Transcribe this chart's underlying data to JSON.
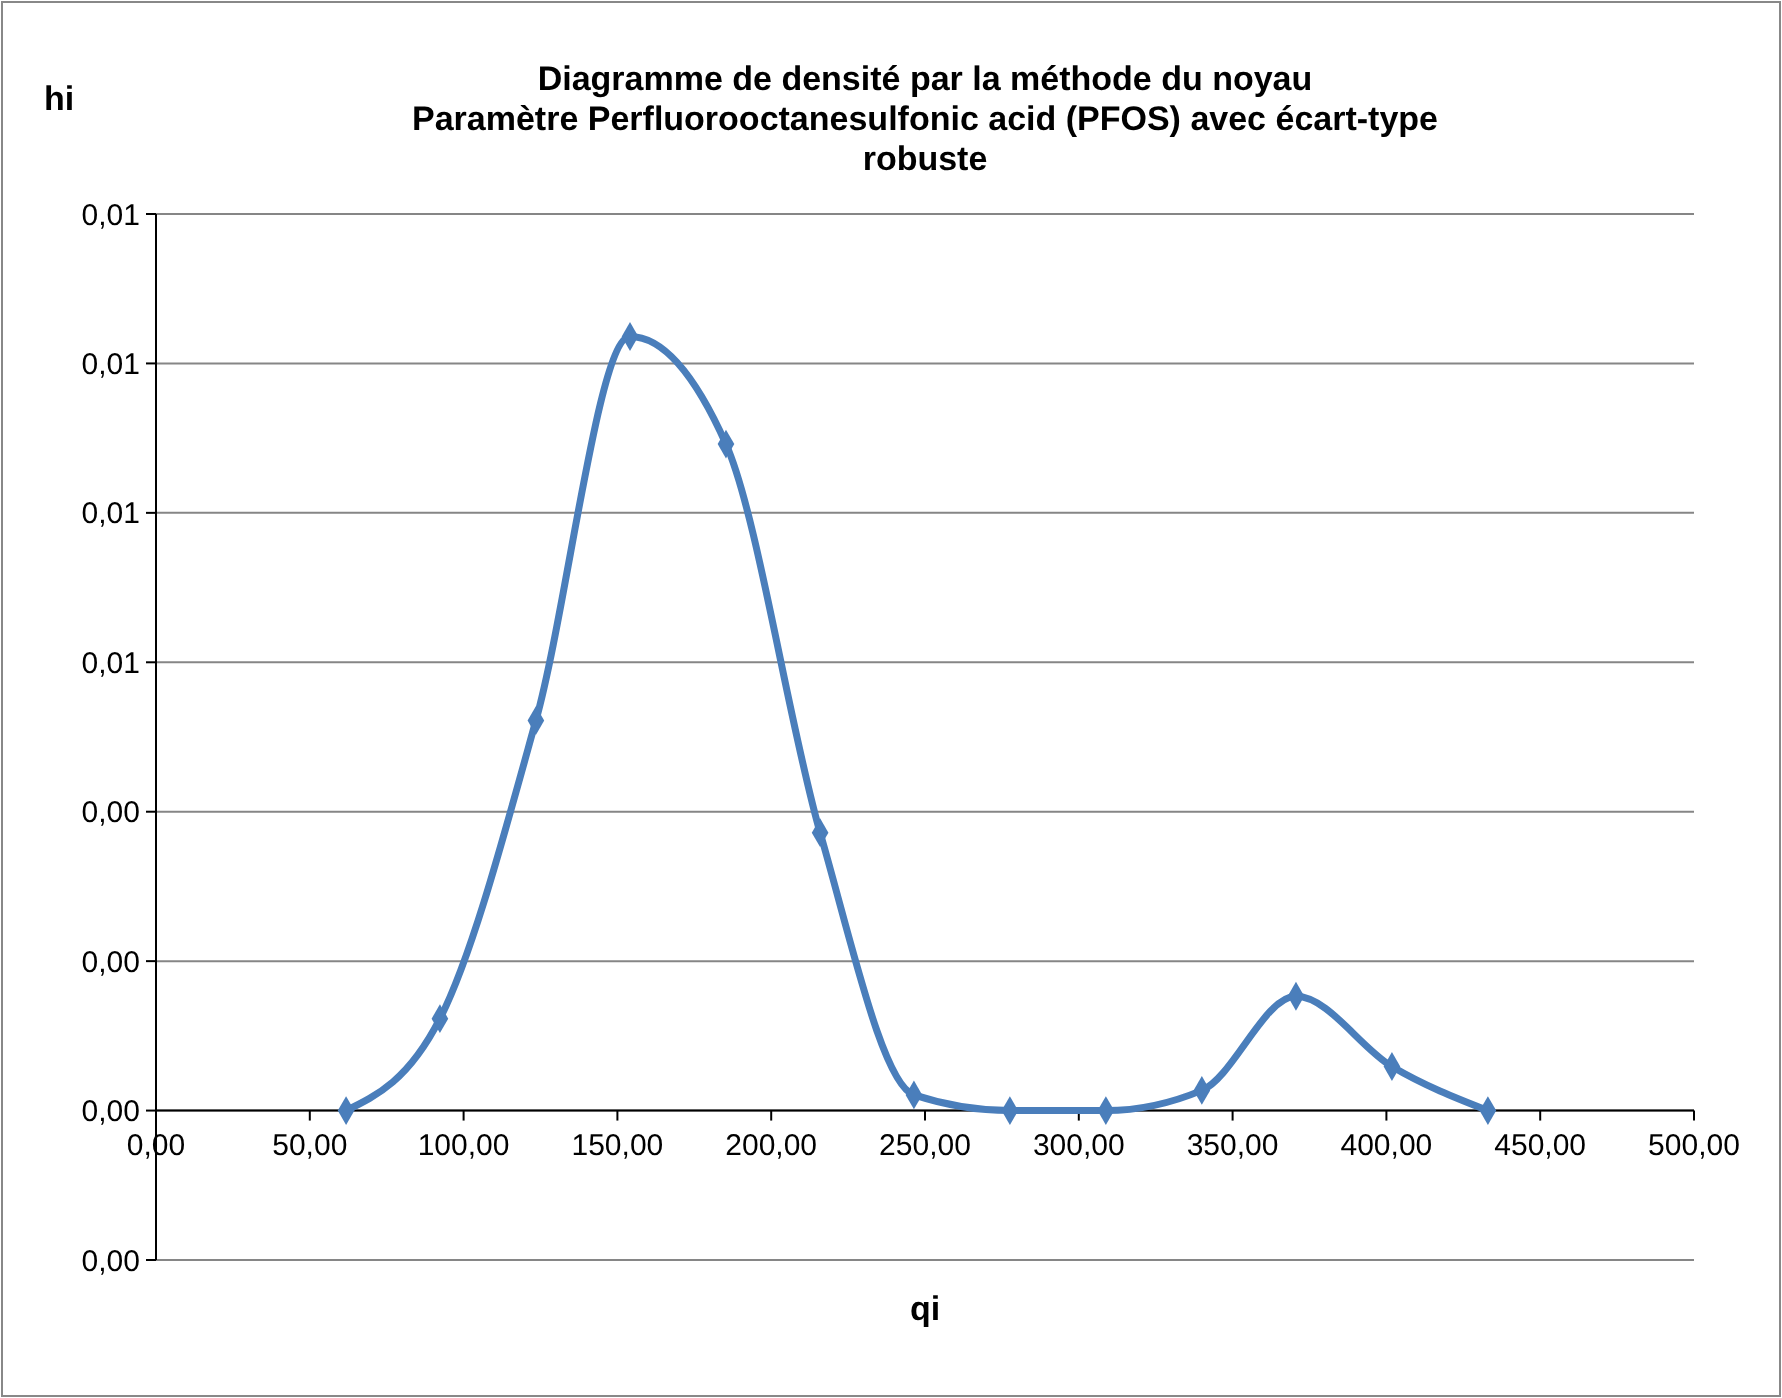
{
  "chart_data": {
    "type": "line",
    "title": "Diagramme de densité par la méthode du noyau\nParamètre Perfluorooctanesulfonic acid (PFOS) avec écart-type\nrobuste",
    "xlabel": "qi",
    "ylabel": "hi",
    "x": [
      61.8,
      92.3,
      123.5,
      154.1,
      185.3,
      215.9,
      246.4,
      277.6,
      308.8,
      340,
      370.6,
      401.8,
      433
    ],
    "series": [
      {
        "color": "#4a7ebb",
        "values": [
          0,
          0.00123,
          0.00522,
          0.01036,
          0.00892,
          0.00372,
          0.00021,
          0,
          0,
          0.00027,
          0.00153,
          0.00059,
          0
        ]
      }
    ],
    "xlim": [
      0,
      500
    ],
    "xticks": [
      {
        "value": 0,
        "label": "0,00"
      },
      {
        "value": 50,
        "label": "50,00"
      },
      {
        "value": 100,
        "label": "100,00"
      },
      {
        "value": 150,
        "label": "150,00"
      },
      {
        "value": 200,
        "label": "200,00"
      },
      {
        "value": 250,
        "label": "250,00"
      },
      {
        "value": 300,
        "label": "300,00"
      },
      {
        "value": 350,
        "label": "350,00"
      },
      {
        "value": 400,
        "label": "400,00"
      },
      {
        "value": 450,
        "label": "450,00"
      },
      {
        "value": 500,
        "label": "500,00"
      }
    ],
    "ylim": [
      -0.002,
      0.012
    ],
    "yticks": [
      {
        "value": -0.002,
        "label": "0,00"
      },
      {
        "value": 0,
        "label": "0,00"
      },
      {
        "value": 0.002,
        "label": "0,00"
      },
      {
        "value": 0.004,
        "label": "0,00"
      },
      {
        "value": 0.006,
        "label": "0,01"
      },
      {
        "value": 0.008,
        "label": "0,01"
      },
      {
        "value": 0.01,
        "label": "0,01"
      },
      {
        "value": 0.012,
        "label": "0,01"
      }
    ],
    "grid": "y",
    "marker": "diamond",
    "line_style": "solid"
  }
}
